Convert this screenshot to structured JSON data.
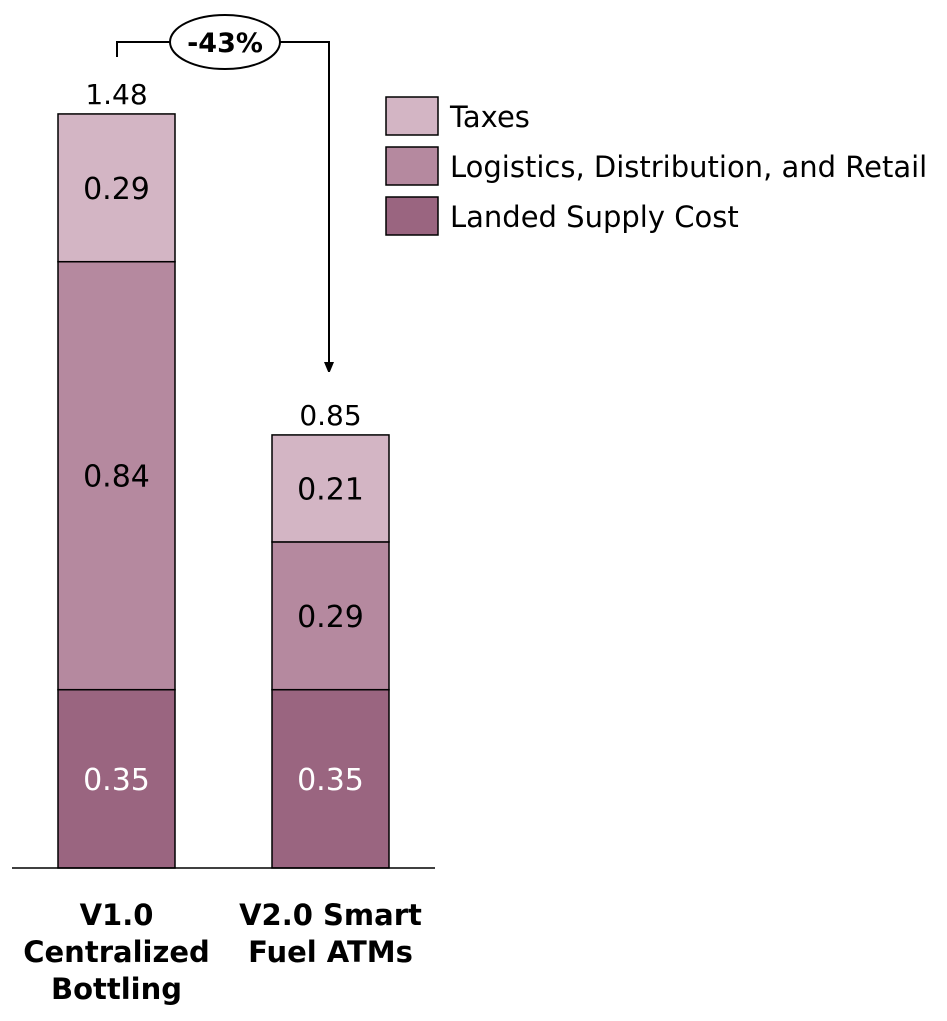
{
  "chart_data": {
    "type": "bar",
    "stacked": true,
    "title": "",
    "xlabel": "",
    "ylabel": "",
    "ylim": [
      0,
      1.6
    ],
    "grid": false,
    "legend_position": "top-right",
    "categories": [
      "V1.0 Centralized Bottling",
      "V2.0 Smart Fuel ATMs"
    ],
    "category_lines": [
      [
        "V1.0",
        "Centralized",
        "Bottling"
      ],
      [
        "V2.0 Smart",
        "Fuel ATMs"
      ]
    ],
    "series": [
      {
        "name": "Landed Supply Cost",
        "values": [
          0.35,
          0.35
        ],
        "labels": [
          "0.35",
          "0.35"
        ],
        "color": "#9a6580",
        "label_color": "#ffffff"
      },
      {
        "name": "Logistics, Distribution, and Retail",
        "values": [
          0.84,
          0.29
        ],
        "labels": [
          "0.84",
          "0.29"
        ],
        "color": "#b5899f",
        "label_color": "#000000"
      },
      {
        "name": "Taxes",
        "values": [
          0.29,
          0.21
        ],
        "labels": [
          "0.29",
          "0.21"
        ],
        "color": "#d3b5c4",
        "label_color": "#000000"
      }
    ],
    "totals": [
      1.48,
      0.85
    ],
    "total_labels": [
      "1.48",
      "0.85"
    ],
    "annotation": {
      "text": "-43%",
      "from_category": 0,
      "to_category": 1
    }
  }
}
